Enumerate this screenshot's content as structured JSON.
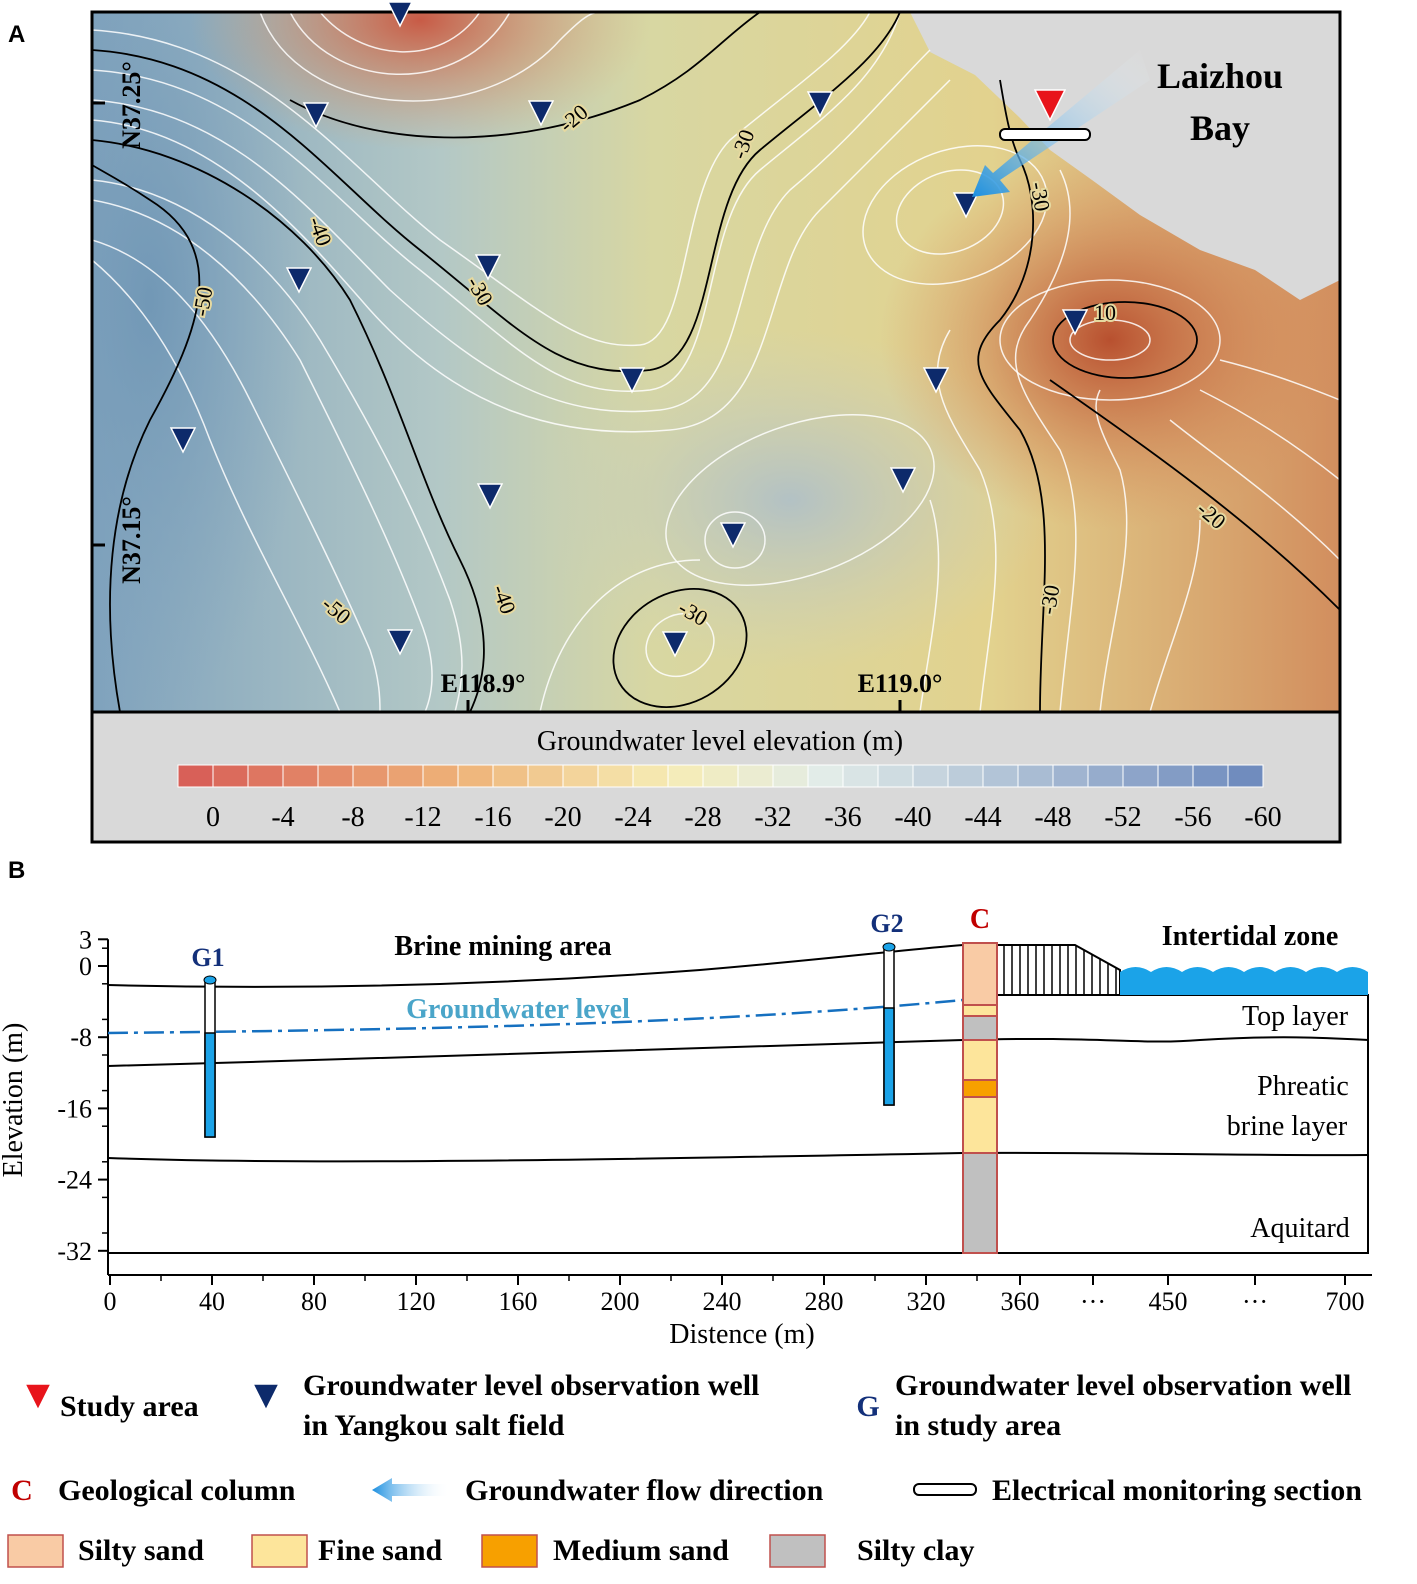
{
  "panel_a": {
    "label": "A",
    "coordinates": [
      "N37.25°",
      "N37.15°",
      "E118.9°",
      "E119.0°"
    ],
    "place": [
      "Laizhou",
      "Bay"
    ],
    "contour_labels": [
      -20,
      -30,
      -40,
      -30,
      -50,
      10,
      -30,
      -20,
      -30,
      -40,
      -50,
      -30
    ],
    "colorbar": {
      "title": "Groundwater level elevation (m)",
      "ticks": [
        0,
        -4,
        -8,
        -12,
        -16,
        -20,
        -24,
        -28,
        -32,
        -36,
        -40,
        -44,
        -48,
        -52,
        -56,
        -60
      ]
    }
  },
  "panel_b": {
    "label": "B",
    "y_axis_label": "Elevation (m)",
    "x_axis_label": "Distence (m)",
    "yticks": [
      3,
      0,
      -8,
      -16,
      -24,
      -32
    ],
    "xticks": [
      "0",
      "40",
      "80",
      "120",
      "160",
      "200",
      "240",
      "280",
      "320",
      "360",
      "···",
      "450",
      "···",
      "700"
    ],
    "zones": [
      "Brine mining area",
      "Intertidal zone"
    ],
    "groundwater_label": "Groundwater level",
    "layers": [
      "Top layer",
      "Phreatic",
      "brine layer",
      "Aquitard"
    ],
    "wells": [
      "G1",
      "G2"
    ],
    "column": "C"
  },
  "legend": {
    "study_area": "Study area",
    "yangkou_well": [
      "Groundwater level observation well",
      "in Yangkou salt field"
    ],
    "g_symbol": "G",
    "study_well": [
      "Groundwater level observation well",
      "in study area"
    ],
    "c_symbol": "C",
    "column": "Geological column",
    "flow": "Groundwater flow direction",
    "section": "Electrical monitoring section",
    "materials": [
      "Silty sand",
      "Fine sand",
      "Medium sand",
      "Silty clay"
    ]
  }
}
